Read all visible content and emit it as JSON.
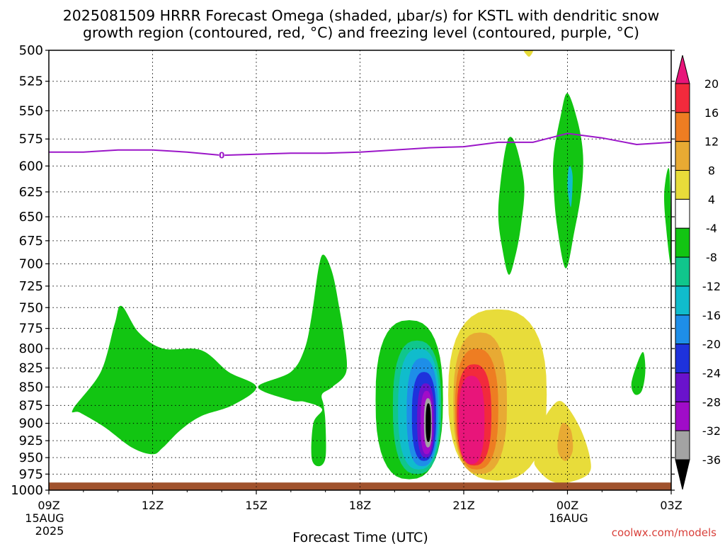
{
  "title_line1": "2025081509 HRRR Forecast Omega (shaded, μbar/s) for KSTL with dendritic snow",
  "title_line2": "growth region (contoured, red, °C) and freezing level (contoured, purple, °C)",
  "xlabel": "Forecast Time (UTC)",
  "watermark": "coolwx.com/models",
  "date_labels": {
    "start_day": "15AUG",
    "start_year": "2025",
    "next_day": "16AUG"
  },
  "chart_data": {
    "type": "heatmap",
    "title": "2025081509 HRRR Forecast Omega (shaded, μbar/s) for KSTL with dendritic snow growth region (contoured, red, °C) and freezing level (contoured, purple, °C)",
    "xlabel": "Forecast Time (UTC)",
    "ylabel": "",
    "y_axis": {
      "unit": "hPa",
      "ticks": [
        500,
        525,
        550,
        575,
        600,
        625,
        650,
        675,
        700,
        725,
        750,
        775,
        800,
        825,
        850,
        875,
        900,
        925,
        950,
        975,
        1000
      ],
      "range": [
        1000,
        500
      ],
      "scale": "log-pressure"
    },
    "x_axis": {
      "range_hours_utc": [
        "2025-08-15T09Z",
        "2025-08-16T03Z"
      ],
      "ticks": [
        {
          "label": "09Z",
          "time": "2025-08-15T09Z"
        },
        {
          "label": "12Z",
          "time": "2025-08-15T12Z"
        },
        {
          "label": "15Z",
          "time": "2025-08-15T15Z"
        },
        {
          "label": "18Z",
          "time": "2025-08-15T18Z"
        },
        {
          "label": "21Z",
          "time": "2025-08-15T21Z"
        },
        {
          "label": "00Z",
          "time": "2025-08-16T00Z"
        },
        {
          "label": "03Z",
          "time": "2025-08-16T03Z"
        }
      ]
    },
    "grid": true,
    "colorbar": {
      "placement": "right",
      "labels": [
        "20",
        "16",
        "12",
        "8",
        "4",
        "-4",
        "-8",
        "-12",
        "-16",
        "-20",
        "-24",
        "-28",
        "-32",
        "-36"
      ],
      "bins": [
        {
          "range": [
            20,
            null
          ],
          "color": "#e8157a"
        },
        {
          "range": [
            16,
            20
          ],
          "color": "#f22a3c"
        },
        {
          "range": [
            12,
            16
          ],
          "color": "#ee7d22"
        },
        {
          "range": [
            8,
            12
          ],
          "color": "#e8aa33"
        },
        {
          "range": [
            4,
            8
          ],
          "color": "#e8dc3a"
        },
        {
          "range": [
            -4,
            4
          ],
          "color": "#ffffff"
        },
        {
          "range": [
            -8,
            -4
          ],
          "color": "#12c512"
        },
        {
          "range": [
            -12,
            -8
          ],
          "color": "#10c68c"
        },
        {
          "range": [
            -16,
            -12
          ],
          "color": "#10bccc"
        },
        {
          "range": [
            -20,
            -16
          ],
          "color": "#1e8ee8"
        },
        {
          "range": [
            -24,
            -20
          ],
          "color": "#1e32dc"
        },
        {
          "range": [
            -28,
            -24
          ],
          "color": "#6a12cc"
        },
        {
          "range": [
            -32,
            -28
          ],
          "color": "#a00cc8"
        },
        {
          "range": [
            -36,
            -32
          ],
          "color": "#a3a3a3"
        },
        {
          "range": [
            null,
            -36
          ],
          "color": "#000000"
        }
      ]
    },
    "freezing_level": {
      "color": "#9b16c8",
      "label": "0",
      "points": [
        {
          "time": "2025-08-15T09Z",
          "hPa": 587
        },
        {
          "time": "2025-08-15T10Z",
          "hPa": 587
        },
        {
          "time": "2025-08-15T11Z",
          "hPa": 585
        },
        {
          "time": "2025-08-15T12Z",
          "hPa": 585
        },
        {
          "time": "2025-08-15T13Z",
          "hPa": 587
        },
        {
          "time": "2025-08-15T14Z",
          "hPa": 590
        },
        {
          "time": "2025-08-15T15Z",
          "hPa": 589
        },
        {
          "time": "2025-08-15T16Z",
          "hPa": 588
        },
        {
          "time": "2025-08-15T17Z",
          "hPa": 588
        },
        {
          "time": "2025-08-15T18Z",
          "hPa": 587
        },
        {
          "time": "2025-08-15T19Z",
          "hPa": 585
        },
        {
          "time": "2025-08-15T20Z",
          "hPa": 583
        },
        {
          "time": "2025-08-15T21Z",
          "hPa": 582
        },
        {
          "time": "2025-08-15T22Z",
          "hPa": 578
        },
        {
          "time": "2025-08-15T23Z",
          "hPa": 578
        },
        {
          "time": "2025-08-16T00Z",
          "hPa": 570
        },
        {
          "time": "2025-08-16T01Z",
          "hPa": 574
        },
        {
          "time": "2025-08-16T02Z",
          "hPa": 580
        },
        {
          "time": "2025-08-16T03Z",
          "hPa": 578
        }
      ]
    },
    "omega_regions": [
      {
        "color": "#12c512",
        "bin": "-8 to -4",
        "points": [
          [
            9.7,
            880
          ],
          [
            10.5,
            830
          ],
          [
            10.9,
            770
          ],
          [
            11.1,
            748
          ],
          [
            11.6,
            780
          ],
          [
            12.3,
            800
          ],
          [
            13.4,
            802
          ],
          [
            14.2,
            830
          ],
          [
            15.0,
            850
          ],
          [
            14.3,
            875
          ],
          [
            13.4,
            890
          ],
          [
            12.8,
            910
          ],
          [
            12.3,
            935
          ],
          [
            12.0,
            945
          ],
          [
            11.4,
            935
          ],
          [
            10.6,
            905
          ],
          [
            9.9,
            885
          ]
        ]
      },
      {
        "color": "#12c512",
        "bin": "-8 to -4",
        "points": [
          [
            15.05,
            850
          ],
          [
            16.0,
            830
          ],
          [
            16.4,
            800
          ],
          [
            16.6,
            760
          ],
          [
            16.8,
            705
          ],
          [
            16.95,
            690
          ],
          [
            17.2,
            710
          ],
          [
            17.4,
            750
          ],
          [
            17.55,
            790
          ],
          [
            17.6,
            830
          ],
          [
            17.2,
            850
          ],
          [
            16.9,
            860
          ],
          [
            16.95,
            875
          ],
          [
            17.0,
            900
          ],
          [
            17.0,
            950
          ],
          [
            16.8,
            963
          ],
          [
            16.6,
            950
          ],
          [
            16.65,
            900
          ],
          [
            16.9,
            880
          ],
          [
            16.4,
            870
          ],
          [
            16.0,
            868
          ]
        ]
      },
      {
        "color": "#e8dc3a",
        "bin": "4 to 8",
        "points": [
          [
            22.75,
            500
          ],
          [
            23.0,
            500
          ],
          [
            22.9,
            505
          ],
          [
            22.8,
            503
          ]
        ]
      },
      {
        "color": "#12c512",
        "bin": "-8 to -4",
        "points": [
          [
            22.05,
            620
          ],
          [
            22.2,
            585
          ],
          [
            22.35,
            573
          ],
          [
            22.55,
            585
          ],
          [
            22.75,
            620
          ],
          [
            22.65,
            660
          ],
          [
            22.5,
            690
          ],
          [
            22.3,
            712
          ],
          [
            22.1,
            680
          ],
          [
            22.0,
            650
          ]
        ]
      },
      {
        "color": "#12c512",
        "bin": "-8 to -4",
        "points": [
          [
            23.6,
            590
          ],
          [
            23.8,
            555
          ],
          [
            24.0,
            535
          ],
          [
            24.3,
            560
          ],
          [
            24.45,
            590
          ],
          [
            24.4,
            625
          ],
          [
            24.2,
            665
          ],
          [
            23.95,
            705
          ],
          [
            23.7,
            660
          ],
          [
            23.6,
            620
          ]
        ]
      },
      {
        "color": "#10bccc",
        "bin": "-12 to -8",
        "points": [
          [
            24.05,
            600
          ],
          [
            24.15,
            610
          ],
          [
            24.1,
            640
          ],
          [
            24.0,
            620
          ]
        ]
      },
      {
        "color": "#12c512",
        "bin": "-8 to -4",
        "points": [
          [
            26.8,
            625
          ],
          [
            26.95,
            605
          ],
          [
            27.0,
            700
          ],
          [
            26.85,
            660
          ]
        ]
      },
      {
        "color": "#12c512",
        "bin": "-8 to -4",
        "points": [
          [
            25.85,
            845
          ],
          [
            26.05,
            815
          ],
          [
            26.2,
            805
          ],
          [
            26.25,
            830
          ],
          [
            26.15,
            855
          ],
          [
            25.95,
            860
          ]
        ]
      }
    ],
    "omega_downward_core": {
      "center_time": "2025-08-15T20Z",
      "center_hPa": 900,
      "minimum_bin": "below -36",
      "color_sequence": [
        "#12c512",
        "#10c68c",
        "#10bccc",
        "#1e8ee8",
        "#1e32dc",
        "#6a12cc",
        "#a00cc8",
        "#a3a3a3",
        "#000000"
      ],
      "rings_time_range": [
        [
          18.45,
          20.4
        ],
        [
          18.95,
          20.35
        ],
        [
          19.1,
          20.3
        ],
        [
          19.35,
          20.25
        ],
        [
          19.5,
          20.2
        ],
        [
          19.65,
          20.15
        ],
        [
          19.75,
          20.1
        ],
        [
          19.85,
          20.08
        ],
        [
          19.9,
          20.05
        ]
      ],
      "rings_hPa_range": [
        [
          765,
          983
        ],
        [
          790,
          975
        ],
        [
          800,
          968
        ],
        [
          812,
          963
        ],
        [
          830,
          955
        ],
        [
          845,
          950
        ],
        [
          855,
          945
        ],
        [
          865,
          935
        ],
        [
          872,
          927
        ]
      ]
    },
    "omega_upward_core": {
      "center_time": "2025-08-15T21Z",
      "center_hPa": 880,
      "maximum_bin": "above 20",
      "color_sequence": [
        "#e8dc3a",
        "#e8aa33",
        "#ee7d22",
        "#f22a3c",
        "#e8157a"
      ],
      "rings_time_range": [
        [
          20.55,
          23.4
        ],
        [
          20.7,
          22.25
        ],
        [
          20.75,
          22.0
        ],
        [
          20.8,
          21.8
        ],
        [
          20.85,
          21.6
        ]
      ],
      "rings_hPa_range": [
        [
          752,
          985
        ],
        [
          780,
          975
        ],
        [
          800,
          968
        ],
        [
          820,
          962
        ],
        [
          835,
          960
        ]
      ]
    },
    "omega_upward_secondary": {
      "color_sequence": [
        "#e8dc3a",
        "#e8aa33"
      ],
      "outer": [
        [
          23.05,
          950
        ],
        [
          23.2,
          910
        ],
        [
          23.5,
          880
        ],
        [
          23.85,
          870
        ],
        [
          24.35,
          905
        ],
        [
          24.65,
          950
        ],
        [
          24.6,
          975
        ],
        [
          24.0,
          988
        ],
        [
          23.5,
          985
        ],
        [
          23.1,
          965
        ]
      ],
      "inner": [
        [
          23.72,
          925
        ],
        [
          23.85,
          900
        ],
        [
          24.1,
          910
        ],
        [
          24.15,
          940
        ],
        [
          23.95,
          955
        ],
        [
          23.75,
          945
        ]
      ]
    },
    "terrain": {
      "color": "#a0522d",
      "hPa_top": 988
    }
  }
}
